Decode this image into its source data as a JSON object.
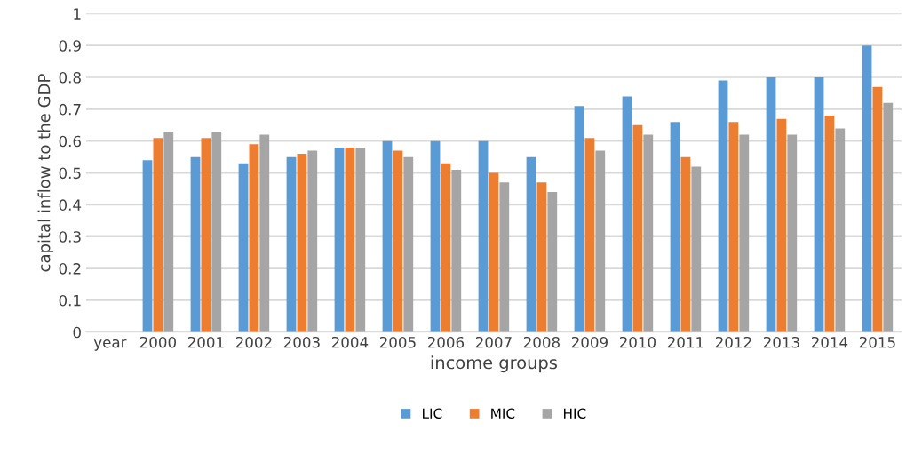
{
  "chart_data": {
    "type": "bar",
    "xlabel": "income groups",
    "ylabel": "capital inflow to the GDP",
    "categories": [
      "year",
      "2000",
      "2001",
      "2002",
      "2003",
      "2004",
      "2005",
      "2006",
      "2007",
      "2008",
      "2009",
      "2010",
      "2011",
      "2012",
      "2013",
      "2014",
      "2015"
    ],
    "series": [
      {
        "name": "LIC",
        "color": "#5b9bd5",
        "values": [
          null,
          0.54,
          0.55,
          0.53,
          0.55,
          0.58,
          0.6,
          0.6,
          0.6,
          0.55,
          0.71,
          0.74,
          0.66,
          0.79,
          0.8,
          0.8,
          0.9
        ]
      },
      {
        "name": "MIC",
        "color": "#ed7d31",
        "values": [
          null,
          0.61,
          0.61,
          0.59,
          0.56,
          0.58,
          0.57,
          0.53,
          0.5,
          0.47,
          0.61,
          0.65,
          0.55,
          0.66,
          0.67,
          0.68,
          0.77
        ]
      },
      {
        "name": "HIC",
        "color": "#a5a5a5",
        "values": [
          null,
          0.63,
          0.63,
          0.62,
          0.57,
          0.58,
          0.55,
          0.51,
          0.47,
          0.44,
          0.57,
          0.62,
          0.52,
          0.62,
          0.62,
          0.64,
          0.72
        ]
      }
    ],
    "ylim": [
      0,
      1
    ],
    "yticks": [
      0,
      0.1,
      0.2,
      0.3,
      0.4,
      0.5,
      0.6,
      0.7,
      0.8,
      0.9,
      1
    ],
    "grid": "y",
    "legend": "bottom"
  }
}
